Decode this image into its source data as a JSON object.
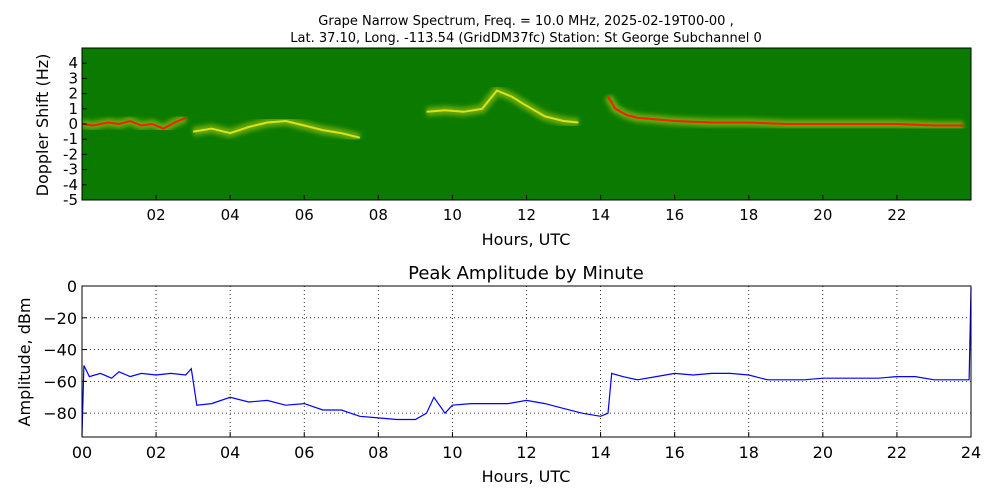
{
  "figure": {
    "title_line1": "Grape Narrow Spectrum, Freq. = 10.0 MHz, 2025-02-19T00-00 ,",
    "title_line2": "Lat.  37.10, Long. -113.54 (GridDM37fc) Station: St George Subchannel 0"
  },
  "chart_data": [
    {
      "type": "heatmap",
      "title": "",
      "xlabel": "Hours, UTC",
      "ylabel": "Doppler Shift (Hz)",
      "xlim": [
        0,
        24
      ],
      "ylim": [
        -5,
        5
      ],
      "xticks": [
        "02",
        "04",
        "06",
        "08",
        "10",
        "12",
        "14",
        "16",
        "18",
        "20",
        "22"
      ],
      "yticks": [
        "4",
        "3",
        "2",
        "1",
        "0",
        "-1",
        "-2",
        "-3",
        "-4",
        "-5"
      ],
      "colors": {
        "background": "#0a7a00",
        "mid": "#d9e21b",
        "peak": "#ff1a00"
      },
      "trace_segments": [
        {
          "x": [
            0.0,
            0.3,
            0.7,
            1.0,
            1.3,
            1.6,
            1.9,
            2.2,
            2.5,
            2.8
          ],
          "y": [
            0.0,
            -0.1,
            0.1,
            0.0,
            0.2,
            -0.1,
            0.0,
            -0.3,
            0.1,
            0.4
          ],
          "intensity": "peak"
        },
        {
          "x": [
            3.0,
            3.5,
            4.0,
            4.5,
            5.0,
            5.5,
            6.0,
            6.5,
            7.0,
            7.5
          ],
          "y": [
            -0.5,
            -0.3,
            -0.6,
            -0.2,
            0.1,
            0.2,
            -0.1,
            -0.4,
            -0.6,
            -0.9
          ],
          "intensity": "mid"
        },
        {
          "x": [
            9.3,
            9.8,
            10.3,
            10.8,
            11.2,
            11.6,
            12.0,
            12.5,
            13.0,
            13.4
          ],
          "y": [
            0.8,
            0.9,
            0.8,
            1.0,
            2.2,
            1.8,
            1.2,
            0.5,
            0.2,
            0.1
          ],
          "intensity": "mid"
        },
        {
          "x": [
            14.2,
            14.4,
            14.7,
            15.0,
            15.5,
            16.0,
            17.0,
            18.0,
            19.0,
            20.0,
            21.0,
            22.0,
            23.0,
            23.8
          ],
          "y": [
            1.8,
            1.0,
            0.6,
            0.4,
            0.3,
            0.2,
            0.1,
            0.1,
            0.0,
            0.0,
            0.0,
            0.0,
            -0.1,
            -0.1
          ],
          "intensity": "peak"
        }
      ]
    },
    {
      "type": "line",
      "title": "Peak Amplitude by Minute",
      "xlabel": "Hours, UTC",
      "ylabel": "Amplitude, dBm",
      "xlim": [
        0,
        24
      ],
      "ylim": [
        -95,
        0
      ],
      "xticks": [
        "00",
        "02",
        "04",
        "06",
        "08",
        "10",
        "12",
        "14",
        "16",
        "18",
        "20",
        "22",
        "24"
      ],
      "yticks": [
        "0",
        "−20",
        "−40",
        "−60",
        "−80"
      ],
      "grid": true,
      "line_color": "#0000ff",
      "x": [
        0.0,
        0.05,
        0.2,
        0.5,
        0.8,
        1.0,
        1.3,
        1.6,
        2.0,
        2.4,
        2.8,
        2.95,
        3.1,
        3.5,
        4.0,
        4.5,
        5.0,
        5.5,
        6.0,
        6.5,
        7.0,
        7.5,
        8.0,
        8.5,
        9.0,
        9.3,
        9.5,
        9.8,
        10.0,
        10.5,
        11.0,
        11.5,
        12.0,
        12.5,
        13.0,
        13.5,
        14.0,
        14.2,
        14.3,
        14.6,
        15.0,
        15.5,
        16.0,
        16.5,
        17.0,
        17.5,
        18.0,
        18.5,
        19.0,
        19.5,
        20.0,
        20.5,
        21.0,
        21.5,
        22.0,
        22.5,
        23.0,
        23.5,
        23.95,
        24.0
      ],
      "y": [
        -94,
        -50,
        -57,
        -55,
        -58,
        -54,
        -57,
        -55,
        -56,
        -55,
        -56,
        -52,
        -75,
        -74,
        -70,
        -73,
        -72,
        -75,
        -74,
        -78,
        -78,
        -82,
        -83,
        -84,
        -84,
        -80,
        -70,
        -80,
        -75,
        -74,
        -74,
        -74,
        -72,
        -74,
        -77,
        -80,
        -82,
        -80,
        -55,
        -57,
        -59,
        -57,
        -55,
        -56,
        -55,
        -55,
        -56,
        -59,
        -59,
        -59,
        -58,
        -58,
        -58,
        -58,
        -57,
        -57,
        -59,
        -59,
        -59,
        -1
      ]
    }
  ]
}
